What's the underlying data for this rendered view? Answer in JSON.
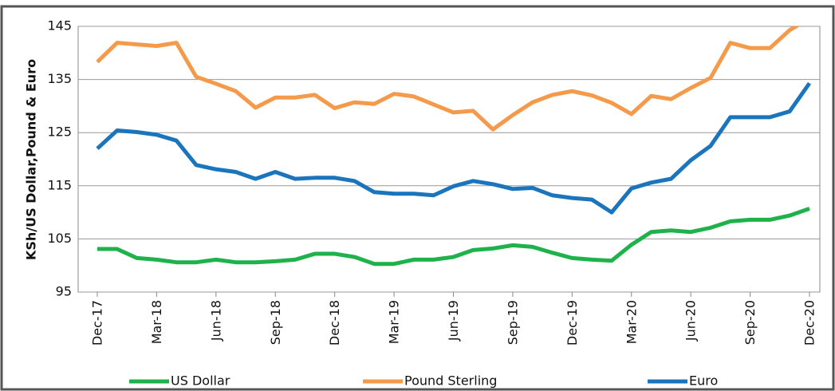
{
  "chart_data": {
    "type": "line",
    "y_axis_label": "KSh/US  Dollar,Pound  & Euro",
    "categories": [
      "Dec-17",
      null,
      null,
      "Mar-18",
      null,
      null,
      "Jun-18",
      null,
      null,
      "Sep-18",
      null,
      null,
      "Dec-18",
      null,
      null,
      "Mar-19",
      null,
      null,
      "Jun-19",
      null,
      null,
      "Sep-19",
      null,
      null,
      "Dec-19",
      null,
      null,
      "Mar-20",
      null,
      null,
      "Jun-20",
      null,
      null,
      "Sep-20",
      null,
      null,
      "Dec-20"
    ],
    "series": [
      {
        "name": "US Dollar",
        "color": "#1fb24a",
        "values": [
          103.1,
          103.1,
          101.4,
          101.1,
          100.6,
          100.6,
          101.1,
          100.6,
          100.6,
          100.8,
          101.1,
          102.2,
          102.2,
          101.6,
          100.3,
          100.3,
          101.1,
          101.1,
          101.6,
          102.9,
          103.2,
          103.8,
          103.5,
          102.4,
          101.4,
          101.1,
          100.9,
          103.9,
          106.3,
          106.6,
          106.3,
          107.1,
          108.3,
          108.6,
          108.6,
          109.4,
          110.7
        ]
      },
      {
        "name": "Pound Sterling",
        "color": "#f5994a",
        "values": [
          138.3,
          141.9,
          141.6,
          141.3,
          141.9,
          135.5,
          134.2,
          132.8,
          129.7,
          131.6,
          131.6,
          132.1,
          129.6,
          130.7,
          130.4,
          132.3,
          131.8,
          130.3,
          128.8,
          129.1,
          125.6,
          128.3,
          130.7,
          132.1,
          132.8,
          132.0,
          130.6,
          128.5,
          131.9,
          131.3,
          133.4,
          135.3,
          141.9,
          140.9,
          140.9,
          144.3,
          146.5
        ]
      },
      {
        "name": "Euro",
        "color": "#1b75bc",
        "values": [
          122.0,
          125.4,
          125.1,
          124.6,
          123.5,
          118.9,
          118.1,
          117.6,
          116.3,
          117.6,
          116.3,
          116.5,
          116.5,
          115.9,
          113.8,
          113.5,
          113.5,
          113.2,
          114.9,
          115.9,
          115.3,
          114.4,
          114.6,
          113.2,
          112.7,
          112.4,
          110.0,
          114.5,
          115.6,
          116.3,
          119.8,
          122.5,
          127.9,
          127.9,
          127.9,
          129.0,
          134.3
        ]
      }
    ],
    "ylim": [
      95,
      145
    ],
    "yticks": [
      95,
      105,
      115,
      125,
      135,
      145
    ],
    "grid": true,
    "legend": "bottom"
  }
}
